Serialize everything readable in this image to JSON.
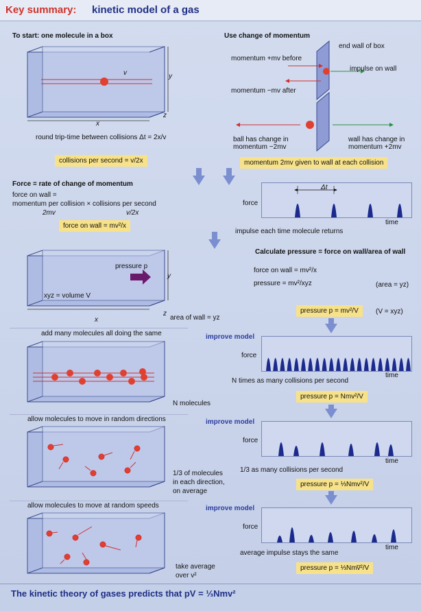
{
  "header": {
    "key": "Key summary:",
    "title": "kinetic model of a gas"
  },
  "s1": {
    "heading": "To start: one molecule in a box",
    "v": "v",
    "x": "x",
    "y": "y",
    "z": "z",
    "roundtrip": "round trip-time between collisions Δt = 2x/v",
    "collisions": "collisions per second = v/2x"
  },
  "s2": {
    "heading": "Use change of momentum",
    "endwall": "end wall of box",
    "before": "momentum +mv before",
    "impulse": "impulse on wall",
    "after": "momentum −mv after",
    "ballchange": "ball has change in\nmomentum −2mv",
    "wallchange": "wall has change in\nmomentum +2mv",
    "given": "momentum 2mv given to wall at each collision"
  },
  "s3": {
    "heading": "Force = rate of change of momentum",
    "l1": "force on wall =",
    "l2": "momentum per collision × collisions per second",
    "l3a": "2mv",
    "l3b": "v/2x",
    "box": "force on wall = mv²/x",
    "force": "force",
    "time": "time",
    "dt": "Δt",
    "impulse": "impulse each time molecule returns"
  },
  "s4": {
    "pressure_p": "pressure p",
    "xyz": "xyz = volume V",
    "x": "x",
    "y": "y",
    "z": "z",
    "area": "area of wall = yz",
    "calc": "Calculate pressure = force on wall/area of wall",
    "f": "force on wall = mv²/x",
    "p": "pressure = mv²/xyz",
    "areayz": "(area = yz)",
    "box": "pressure p = mv²/V",
    "vxyz": "(V = xyz)"
  },
  "s5": {
    "heading": "add many molecules all doing the same",
    "nmol": "N molecules",
    "improve": "improve model",
    "force": "force",
    "time": "time",
    "ntimes": "N times as many collisions per second",
    "box": "pressure p = Nmv²/V"
  },
  "s6": {
    "heading": "allow molecules to move in random directions",
    "third": "1/3 of molecules\nin each direction,\non average",
    "improve": "improve model",
    "force": "force",
    "time": "time",
    "fewer": "1/3 as many collisions per second",
    "box": "pressure p = ⅓Nmv²/V"
  },
  "s7": {
    "heading": "allow molecules to move at random speeds",
    "avg": "take average\nover v²",
    "improve": "improve model",
    "force": "force",
    "time": "time",
    "same": "average impulse stays the same",
    "box": "pressure p = ⅓Nmv̅²/V"
  },
  "footer": "The kinetic theory of gases predicts that pV = ⅓Nmv²",
  "colors": {
    "title_red": "#d0312a",
    "title_blue": "#1f2f86",
    "highlight": "#f7e28a",
    "pulse": "#1b2a8c"
  }
}
